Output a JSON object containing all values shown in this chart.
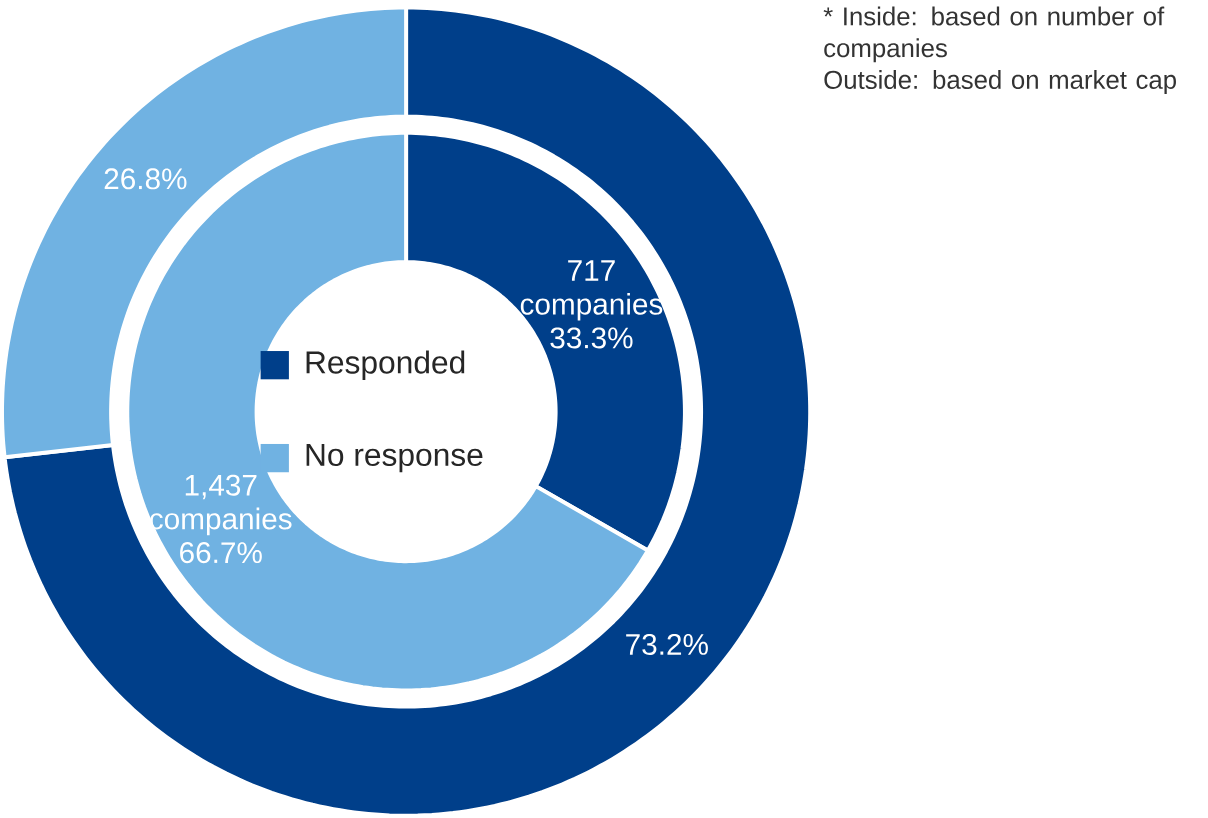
{
  "chart_data": {
    "type": "donut",
    "categories": [
      "Responded",
      "No response"
    ],
    "series": [
      {
        "colors": [
          "#003f8a",
          "#70b2e2"
        ],
        "values": [
          33.3,
          66.7
        ],
        "value_labels": [
          "717 companies 33.3%",
          "1,437 companies 66.7%"
        ]
      },
      {
        "colors": [
          "#003f8a",
          "#70b2e2"
        ],
        "values": [
          73.2,
          26.8
        ],
        "value_labels": [
          "73.2%",
          "26.8%"
        ]
      }
    ],
    "legend": "center",
    "annotations": [
      "* Inside: based on number of companies",
      "Outside: based on market cap"
    ]
  }
}
